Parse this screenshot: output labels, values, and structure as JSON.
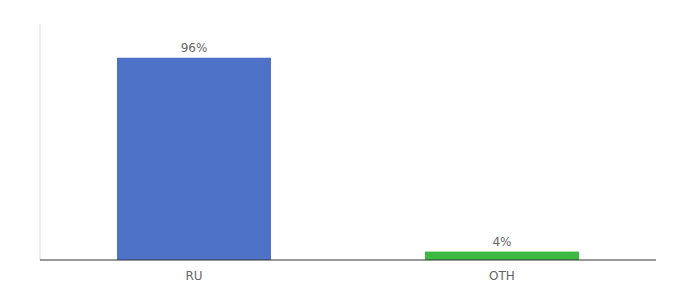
{
  "chart_data": {
    "type": "bar",
    "categories": [
      "RU",
      "OTH"
    ],
    "values": [
      96,
      4
    ],
    "value_labels": [
      "96%",
      "4%"
    ],
    "colors": [
      "#4d72c8",
      "#3cb843"
    ],
    "ylim": [
      0,
      112
    ],
    "data_labels": true,
    "tick_labels": "x"
  }
}
